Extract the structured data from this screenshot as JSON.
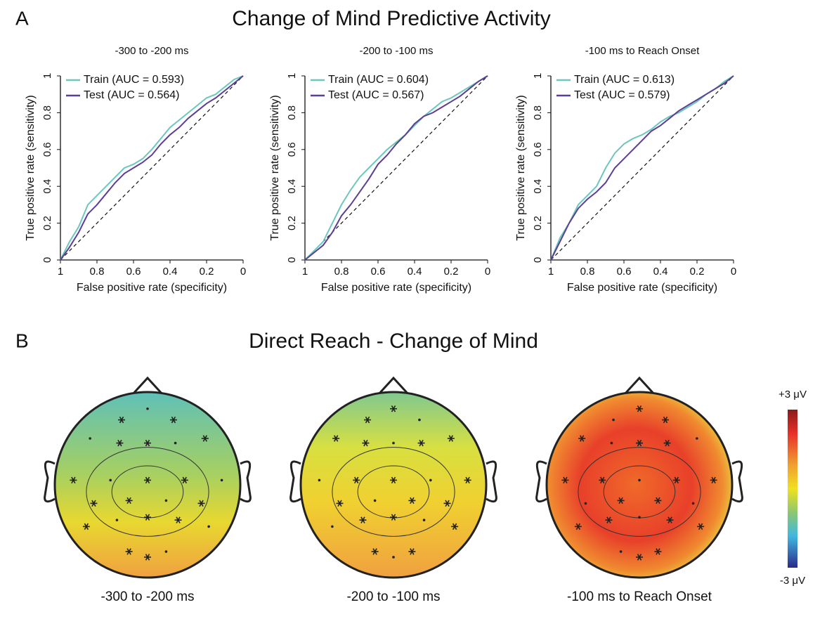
{
  "panel_a": {
    "label": "A",
    "title": "Change of Mind Predictive Activity"
  },
  "chart_data": [
    {
      "type": "line",
      "title": "-300 to -200 ms",
      "xlabel": "False positive rate (specificity)",
      "ylabel": "True positive rate (sensitivity)",
      "x": [
        1,
        0.95,
        0.9,
        0.85,
        0.8,
        0.75,
        0.7,
        0.65,
        0.6,
        0.55,
        0.5,
        0.45,
        0.4,
        0.35,
        0.3,
        0.25,
        0.2,
        0.15,
        0.1,
        0.05,
        0
      ],
      "xlim": [
        1,
        0
      ],
      "ylim": [
        0,
        1
      ],
      "xticks": [
        1,
        0.8,
        0.6,
        0.4,
        0.2,
        0
      ],
      "yticks": [
        0,
        0.2,
        0.4,
        0.6,
        0.8,
        1
      ],
      "legend": "upper left",
      "series": [
        {
          "name": "Train (AUC = 0.593)",
          "color": "#6cc7bc",
          "values": [
            0,
            0.1,
            0.18,
            0.3,
            0.35,
            0.4,
            0.45,
            0.5,
            0.52,
            0.55,
            0.6,
            0.66,
            0.72,
            0.76,
            0.8,
            0.84,
            0.88,
            0.9,
            0.94,
            0.98,
            1
          ]
        },
        {
          "name": "Test (AUC = 0.564)",
          "color": "#5b3f95",
          "values": [
            0,
            0.07,
            0.15,
            0.25,
            0.3,
            0.36,
            0.42,
            0.47,
            0.5,
            0.53,
            0.57,
            0.63,
            0.68,
            0.72,
            0.77,
            0.81,
            0.85,
            0.88,
            0.92,
            0.96,
            1
          ]
        }
      ]
    },
    {
      "type": "line",
      "title": "-200 to -100 ms",
      "xlabel": "False positive rate (specificity)",
      "ylabel": "True positive rate (sensitivity)",
      "x": [
        1,
        0.95,
        0.9,
        0.85,
        0.8,
        0.75,
        0.7,
        0.65,
        0.6,
        0.55,
        0.5,
        0.45,
        0.4,
        0.35,
        0.3,
        0.25,
        0.2,
        0.15,
        0.1,
        0.05,
        0
      ],
      "xlim": [
        1,
        0
      ],
      "ylim": [
        0,
        1
      ],
      "xticks": [
        1,
        0.8,
        0.6,
        0.4,
        0.2,
        0
      ],
      "yticks": [
        0,
        0.2,
        0.4,
        0.6,
        0.8,
        1
      ],
      "legend": "upper left",
      "series": [
        {
          "name": "Train (AUC = 0.604)",
          "color": "#6cc7bc",
          "values": [
            0,
            0.05,
            0.1,
            0.2,
            0.3,
            0.38,
            0.45,
            0.5,
            0.55,
            0.6,
            0.64,
            0.68,
            0.73,
            0.78,
            0.82,
            0.86,
            0.88,
            0.91,
            0.94,
            0.97,
            1
          ]
        },
        {
          "name": "Test (AUC = 0.567)",
          "color": "#5b3f95",
          "values": [
            0,
            0.04,
            0.08,
            0.15,
            0.24,
            0.3,
            0.37,
            0.44,
            0.52,
            0.57,
            0.63,
            0.68,
            0.74,
            0.78,
            0.8,
            0.83,
            0.86,
            0.89,
            0.93,
            0.97,
            1
          ]
        }
      ]
    },
    {
      "type": "line",
      "title": "-100 ms to Reach Onset",
      "xlabel": "False positive rate (specificity)",
      "ylabel": "True positive rate (sensitivity)",
      "x": [
        1,
        0.95,
        0.9,
        0.85,
        0.8,
        0.75,
        0.7,
        0.65,
        0.6,
        0.55,
        0.5,
        0.45,
        0.4,
        0.35,
        0.3,
        0.25,
        0.2,
        0.15,
        0.1,
        0.05,
        0
      ],
      "xlim": [
        1,
        0
      ],
      "ylim": [
        0,
        1
      ],
      "xticks": [
        1,
        0.8,
        0.6,
        0.4,
        0.2,
        0
      ],
      "yticks": [
        0,
        0.2,
        0.4,
        0.6,
        0.8,
        1
      ],
      "legend": "upper left",
      "series": [
        {
          "name": "Train (AUC = 0.613)",
          "color": "#6cc7bc",
          "values": [
            0,
            0.12,
            0.2,
            0.3,
            0.35,
            0.4,
            0.5,
            0.58,
            0.63,
            0.66,
            0.68,
            0.71,
            0.75,
            0.78,
            0.8,
            0.83,
            0.86,
            0.9,
            0.93,
            0.97,
            1
          ]
        },
        {
          "name": "Test (AUC = 0.579)",
          "color": "#5b3f95",
          "values": [
            0,
            0.1,
            0.2,
            0.28,
            0.33,
            0.37,
            0.42,
            0.5,
            0.55,
            0.6,
            0.65,
            0.7,
            0.73,
            0.77,
            0.81,
            0.84,
            0.87,
            0.9,
            0.93,
            0.96,
            1
          ]
        }
      ]
    }
  ],
  "panel_b": {
    "label": "B",
    "title": "Direct Reach - Change of Mind",
    "maps": [
      {
        "label": "-300 to -200 ms"
      },
      {
        "label": "-200 to -100 ms"
      },
      {
        "label": "-100 ms to Reach Onset"
      }
    ],
    "colorbar": {
      "max_label": "+3 μV",
      "min_label": "-3 μV"
    }
  }
}
